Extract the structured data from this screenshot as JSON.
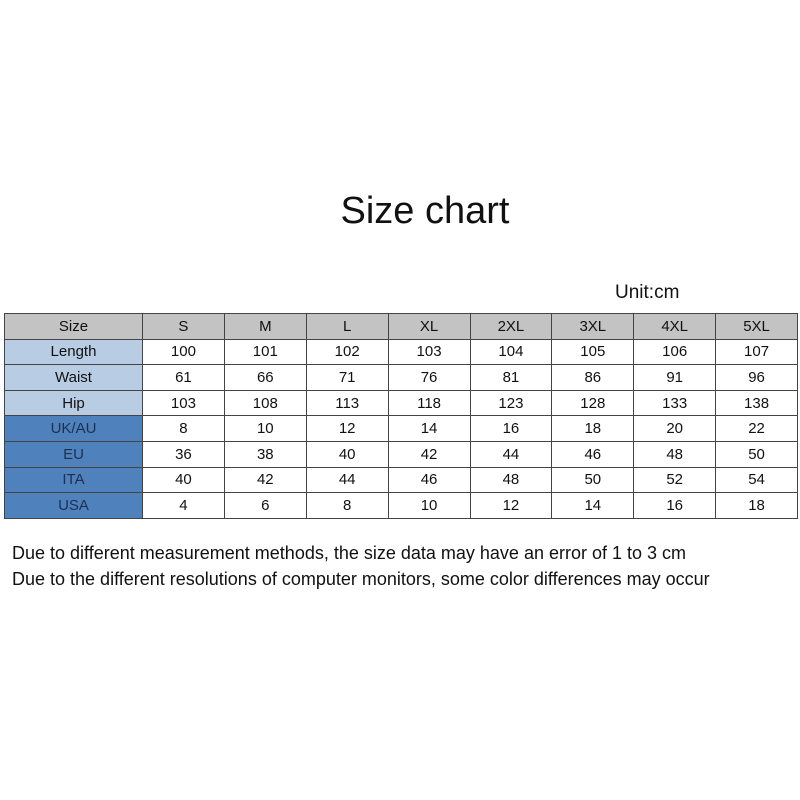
{
  "title": "Size chart",
  "unit": "Unit:cm",
  "table": {
    "header": [
      "Size",
      "S",
      "M",
      "L",
      "XL",
      "2XL",
      "3XL",
      "4XL",
      "5XL"
    ],
    "rows": [
      {
        "label": "Length",
        "style": "light",
        "values": [
          "100",
          "101",
          "102",
          "103",
          "104",
          "105",
          "106",
          "107"
        ]
      },
      {
        "label": "Waist",
        "style": "light",
        "values": [
          "61",
          "66",
          "71",
          "76",
          "81",
          "86",
          "91",
          "96"
        ]
      },
      {
        "label": "Hip",
        "style": "light",
        "values": [
          "103",
          "108",
          "113",
          "118",
          "123",
          "128",
          "133",
          "138"
        ]
      },
      {
        "label": "UK/AU",
        "style": "dark",
        "values": [
          "8",
          "10",
          "12",
          "14",
          "16",
          "18",
          "20",
          "22"
        ]
      },
      {
        "label": "EU",
        "style": "dark",
        "values": [
          "36",
          "38",
          "40",
          "42",
          "44",
          "46",
          "48",
          "50"
        ]
      },
      {
        "label": "ITA",
        "style": "dark",
        "values": [
          "40",
          "42",
          "44",
          "46",
          "48",
          "50",
          "52",
          "54"
        ]
      },
      {
        "label": "USA",
        "style": "dark",
        "values": [
          "4",
          "6",
          "8",
          "10",
          "12",
          "14",
          "16",
          "18"
        ]
      }
    ]
  },
  "colors": {
    "header": "#c3c3c3",
    "light_blue": "#b8cce4",
    "dark_blue": "#4f81bd"
  },
  "notes": [
    "Due to different measurement methods, the size data may have an error of 1 to 3 cm",
    "Due to the different resolutions of computer monitors, some color differences may occur"
  ]
}
